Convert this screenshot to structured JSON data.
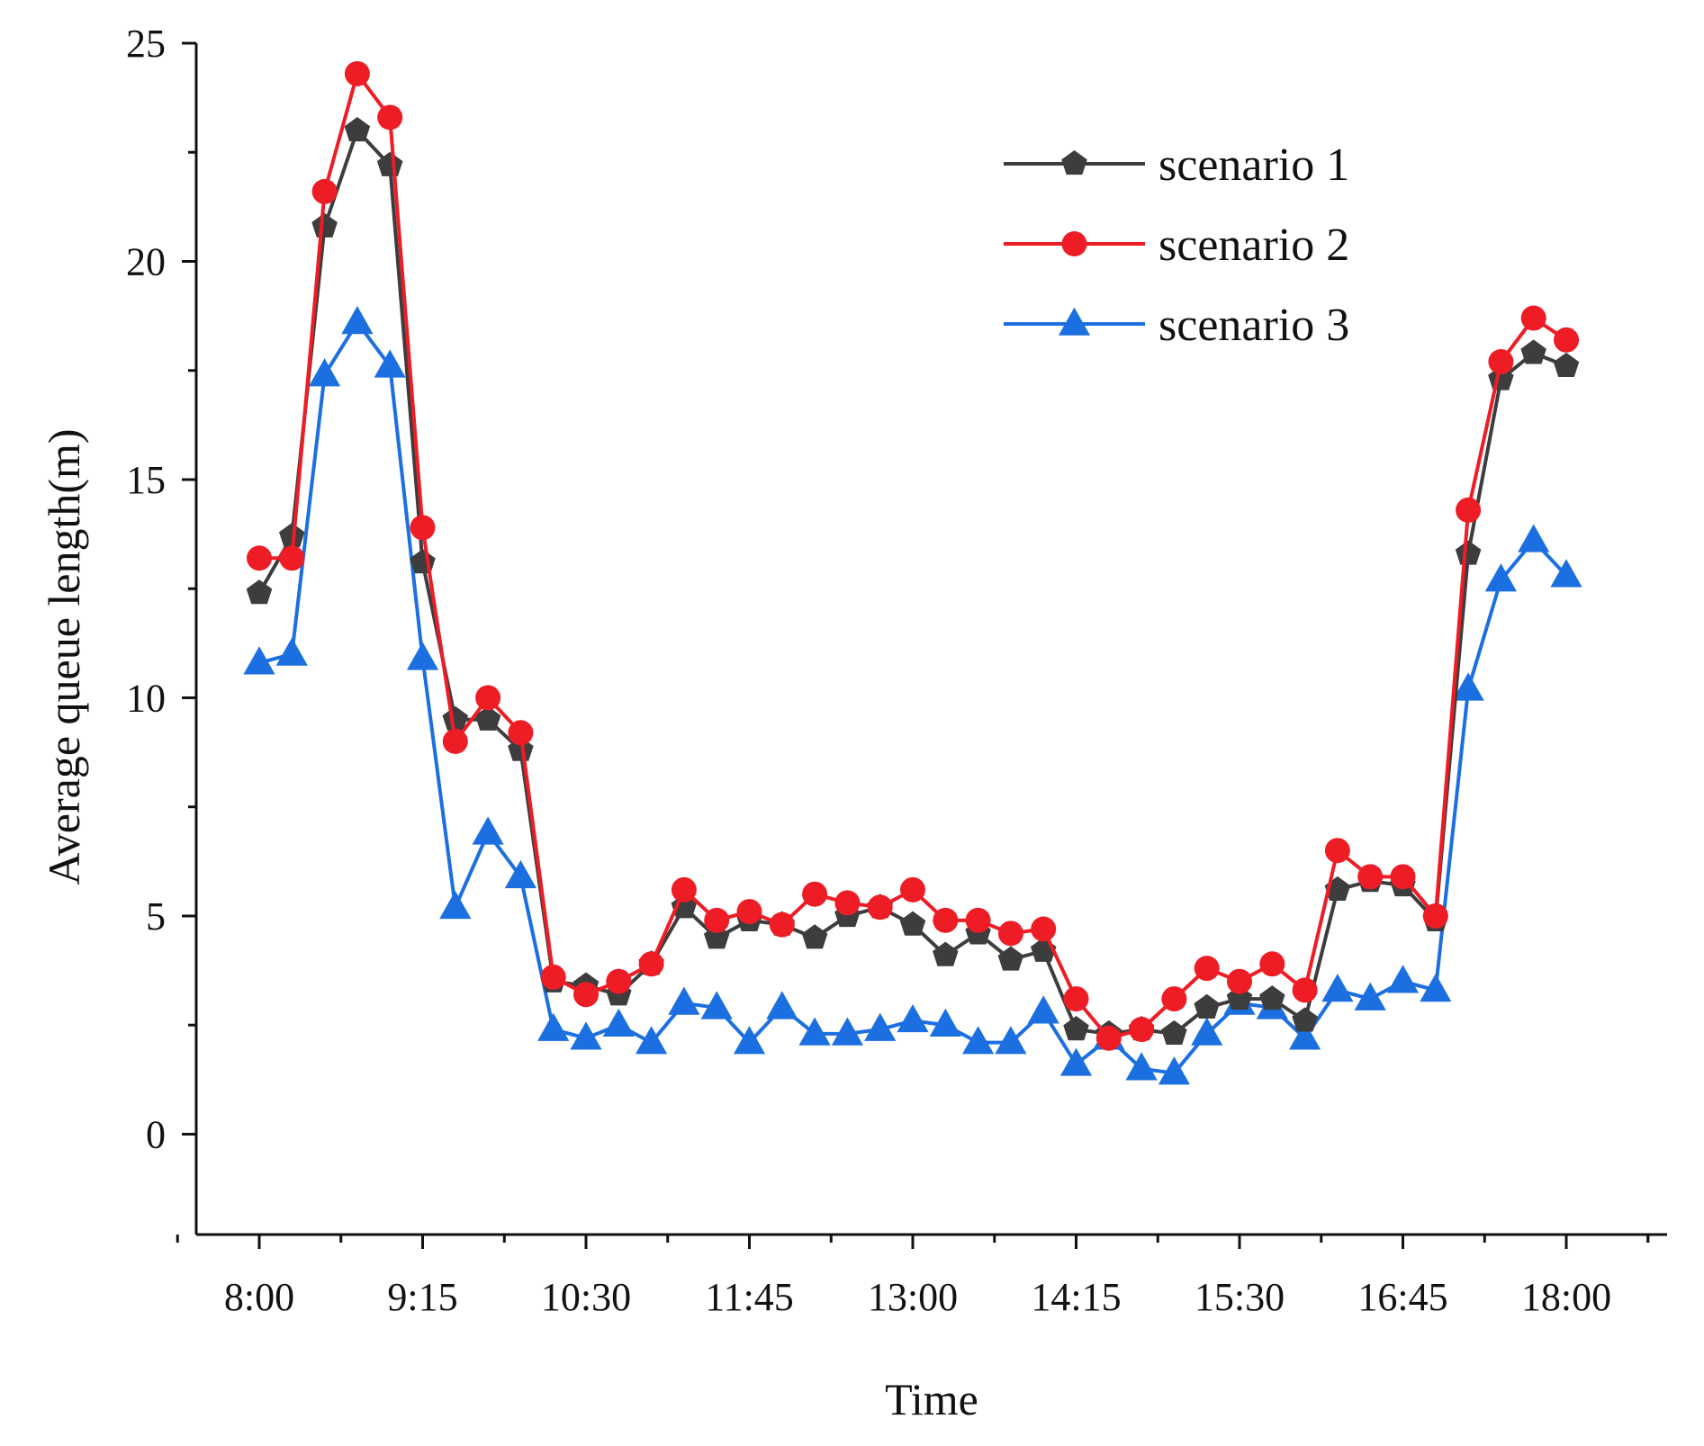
{
  "chart_data": {
    "type": "line",
    "title": "",
    "xlabel": "Time",
    "ylabel": "Average queue length(m)",
    "ylim": [
      -2.3,
      25
    ],
    "yticks": [
      0,
      5,
      10,
      15,
      20,
      25
    ],
    "xtick_labels": [
      "8:00",
      "9:15",
      "10:30",
      "11:45",
      "13:00",
      "14:15",
      "15:30",
      "16:45",
      "18:00"
    ],
    "legend_position": "top-right",
    "x": [
      0,
      1,
      2,
      3,
      4,
      5,
      6,
      7,
      8,
      9,
      10,
      11,
      12,
      13,
      14,
      15,
      16,
      17,
      18,
      19,
      20,
      21,
      22,
      23,
      24,
      25,
      26,
      27,
      28,
      29,
      30,
      31,
      32,
      33,
      34,
      35,
      36,
      37,
      38,
      39,
      40
    ],
    "series": [
      {
        "name": "scenario 1",
        "color": "#3d3d3d",
        "marker": "pentagon",
        "values": [
          12.4,
          13.7,
          20.8,
          23.0,
          22.2,
          13.1,
          9.5,
          9.5,
          8.8,
          3.5,
          3.4,
          3.2,
          3.9,
          5.2,
          4.5,
          4.9,
          4.8,
          4.5,
          5.0,
          5.2,
          4.8,
          4.1,
          4.6,
          4.0,
          4.2,
          2.4,
          2.3,
          2.4,
          2.3,
          2.9,
          3.1,
          3.1,
          2.6,
          5.6,
          5.8,
          5.7,
          4.9,
          13.3,
          17.3,
          17.9,
          17.6
        ]
      },
      {
        "name": "scenario 2",
        "color": "#ee1c25",
        "marker": "circle",
        "values": [
          13.2,
          13.2,
          21.6,
          24.3,
          23.3,
          13.9,
          9.0,
          10.0,
          9.2,
          3.6,
          3.2,
          3.5,
          3.9,
          5.6,
          4.9,
          5.1,
          4.8,
          5.5,
          5.3,
          5.2,
          5.6,
          4.9,
          4.9,
          4.6,
          4.7,
          3.1,
          2.2,
          2.4,
          3.1,
          3.8,
          3.5,
          3.9,
          3.3,
          6.5,
          5.9,
          5.9,
          5.0,
          14.3,
          17.7,
          18.7,
          18.2
        ]
      },
      {
        "name": "scenario 3",
        "color": "#1c6fe0",
        "marker": "triangle",
        "values": [
          10.8,
          11.0,
          17.4,
          18.6,
          17.6,
          10.9,
          5.2,
          6.9,
          5.9,
          2.4,
          2.2,
          2.5,
          2.1,
          3.0,
          2.9,
          2.1,
          2.9,
          2.3,
          2.3,
          2.4,
          2.6,
          2.5,
          2.1,
          2.1,
          2.8,
          1.6,
          2.2,
          1.5,
          1.4,
          2.3,
          3.0,
          2.9,
          2.2,
          3.3,
          3.1,
          3.5,
          3.3,
          10.2,
          12.7,
          13.6,
          12.8
        ]
      }
    ]
  }
}
